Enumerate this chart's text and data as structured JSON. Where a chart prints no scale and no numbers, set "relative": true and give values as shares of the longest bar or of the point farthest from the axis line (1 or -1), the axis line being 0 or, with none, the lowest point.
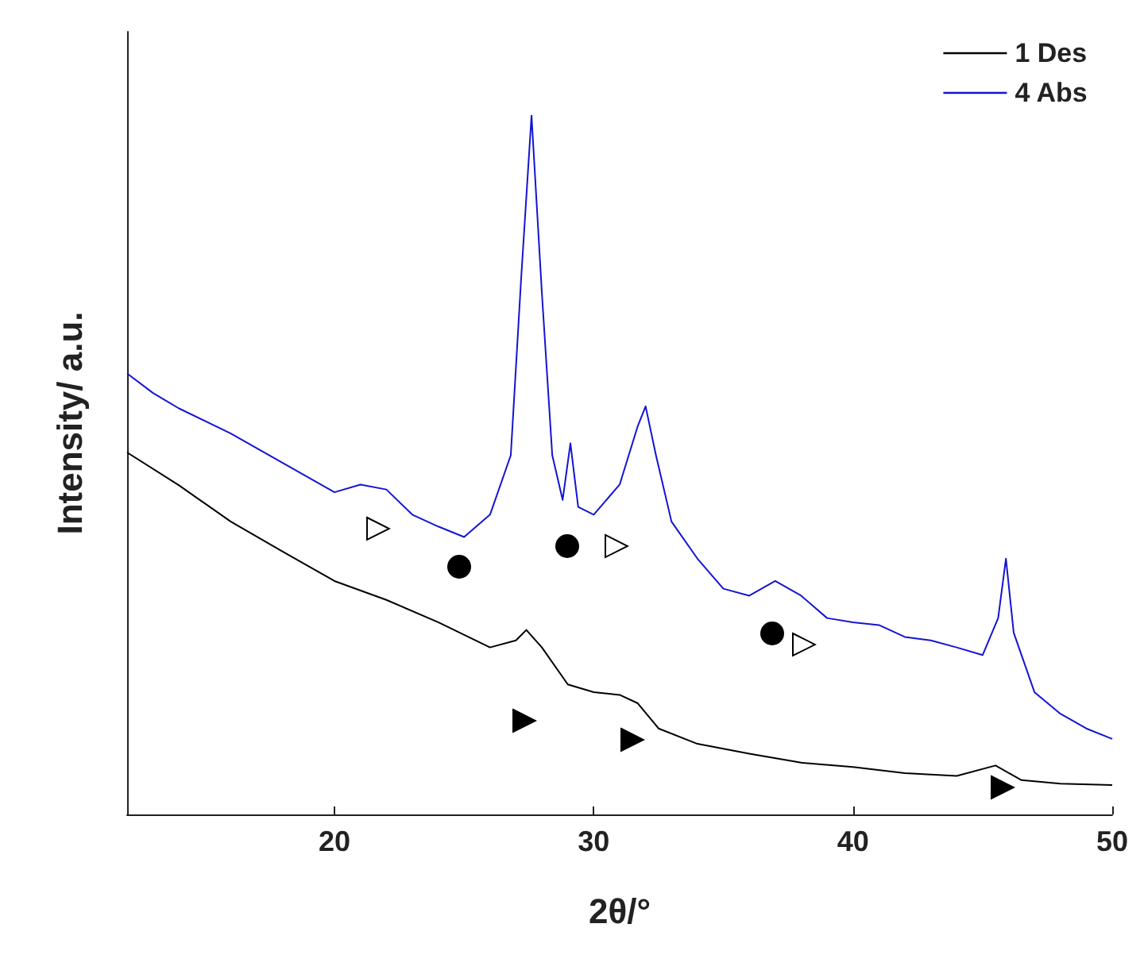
{
  "chart_data": {
    "type": "line",
    "relative": true,
    "xlabel": "2θ/°",
    "ylabel": "Intensity/ a.u.",
    "xlim": [
      12,
      50
    ],
    "xticks": [
      20,
      30,
      40,
      50
    ],
    "legend": "top right",
    "grid": false,
    "marker": "none",
    "line_style": "solid",
    "series": [
      {
        "name": "1 Des",
        "color": "#000000",
        "x": [
          12,
          14,
          16,
          18,
          20,
          22,
          24,
          26,
          27,
          27.4,
          28,
          29,
          30,
          31,
          31.7,
          32.5,
          34,
          36,
          38,
          40,
          42,
          44,
          45.5,
          46.5,
          48,
          50
        ],
        "values": [
          0.518,
          0.471,
          0.419,
          0.376,
          0.334,
          0.307,
          0.275,
          0.239,
          0.249,
          0.264,
          0.239,
          0.186,
          0.175,
          0.171,
          0.159,
          0.123,
          0.101,
          0.087,
          0.074,
          0.068,
          0.059,
          0.055,
          0.07,
          0.049,
          0.044,
          0.042
        ]
      },
      {
        "name": "4 Abs",
        "color": "#1414d2",
        "x": [
          12,
          13,
          14,
          16,
          18,
          20,
          21,
          22,
          23,
          24,
          25,
          26,
          26.8,
          27.2,
          27.6,
          28,
          28.4,
          28.8,
          29.1,
          29.4,
          30,
          31,
          31.7,
          32,
          32.4,
          33,
          34,
          35,
          36,
          37,
          38,
          39,
          40,
          41,
          42,
          43,
          44,
          45,
          45.6,
          45.9,
          46.2,
          47,
          48,
          49,
          50
        ],
        "values": [
          0.631,
          0.603,
          0.581,
          0.545,
          0.503,
          0.461,
          0.472,
          0.465,
          0.429,
          0.412,
          0.397,
          0.429,
          0.514,
          0.767,
          1,
          0.746,
          0.514,
          0.45,
          0.531,
          0.44,
          0.429,
          0.472,
          0.556,
          0.584,
          0.514,
          0.419,
          0.366,
          0.323,
          0.313,
          0.334,
          0.313,
          0.281,
          0.275,
          0.271,
          0.254,
          0.249,
          0.239,
          0.228,
          0.281,
          0.366,
          0.26,
          0.175,
          0.144,
          0.123,
          0.108
        ]
      }
    ],
    "legend_title": null
  }
}
